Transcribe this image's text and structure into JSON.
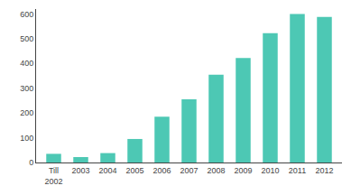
{
  "chart_data": {
    "type": "bar",
    "categories": [
      "Till\n2002",
      "2003",
      "2004",
      "2005",
      "2006",
      "2007",
      "2008",
      "2009",
      "2010",
      "2011",
      "2012"
    ],
    "values": [
      35,
      22,
      38,
      95,
      185,
      255,
      355,
      422,
      522,
      600,
      588
    ],
    "color": "#4DC8B4",
    "ylim": [
      0,
      620
    ],
    "yticks": [
      0,
      100,
      200,
      300,
      400,
      500,
      600
    ],
    "grid": false
  }
}
